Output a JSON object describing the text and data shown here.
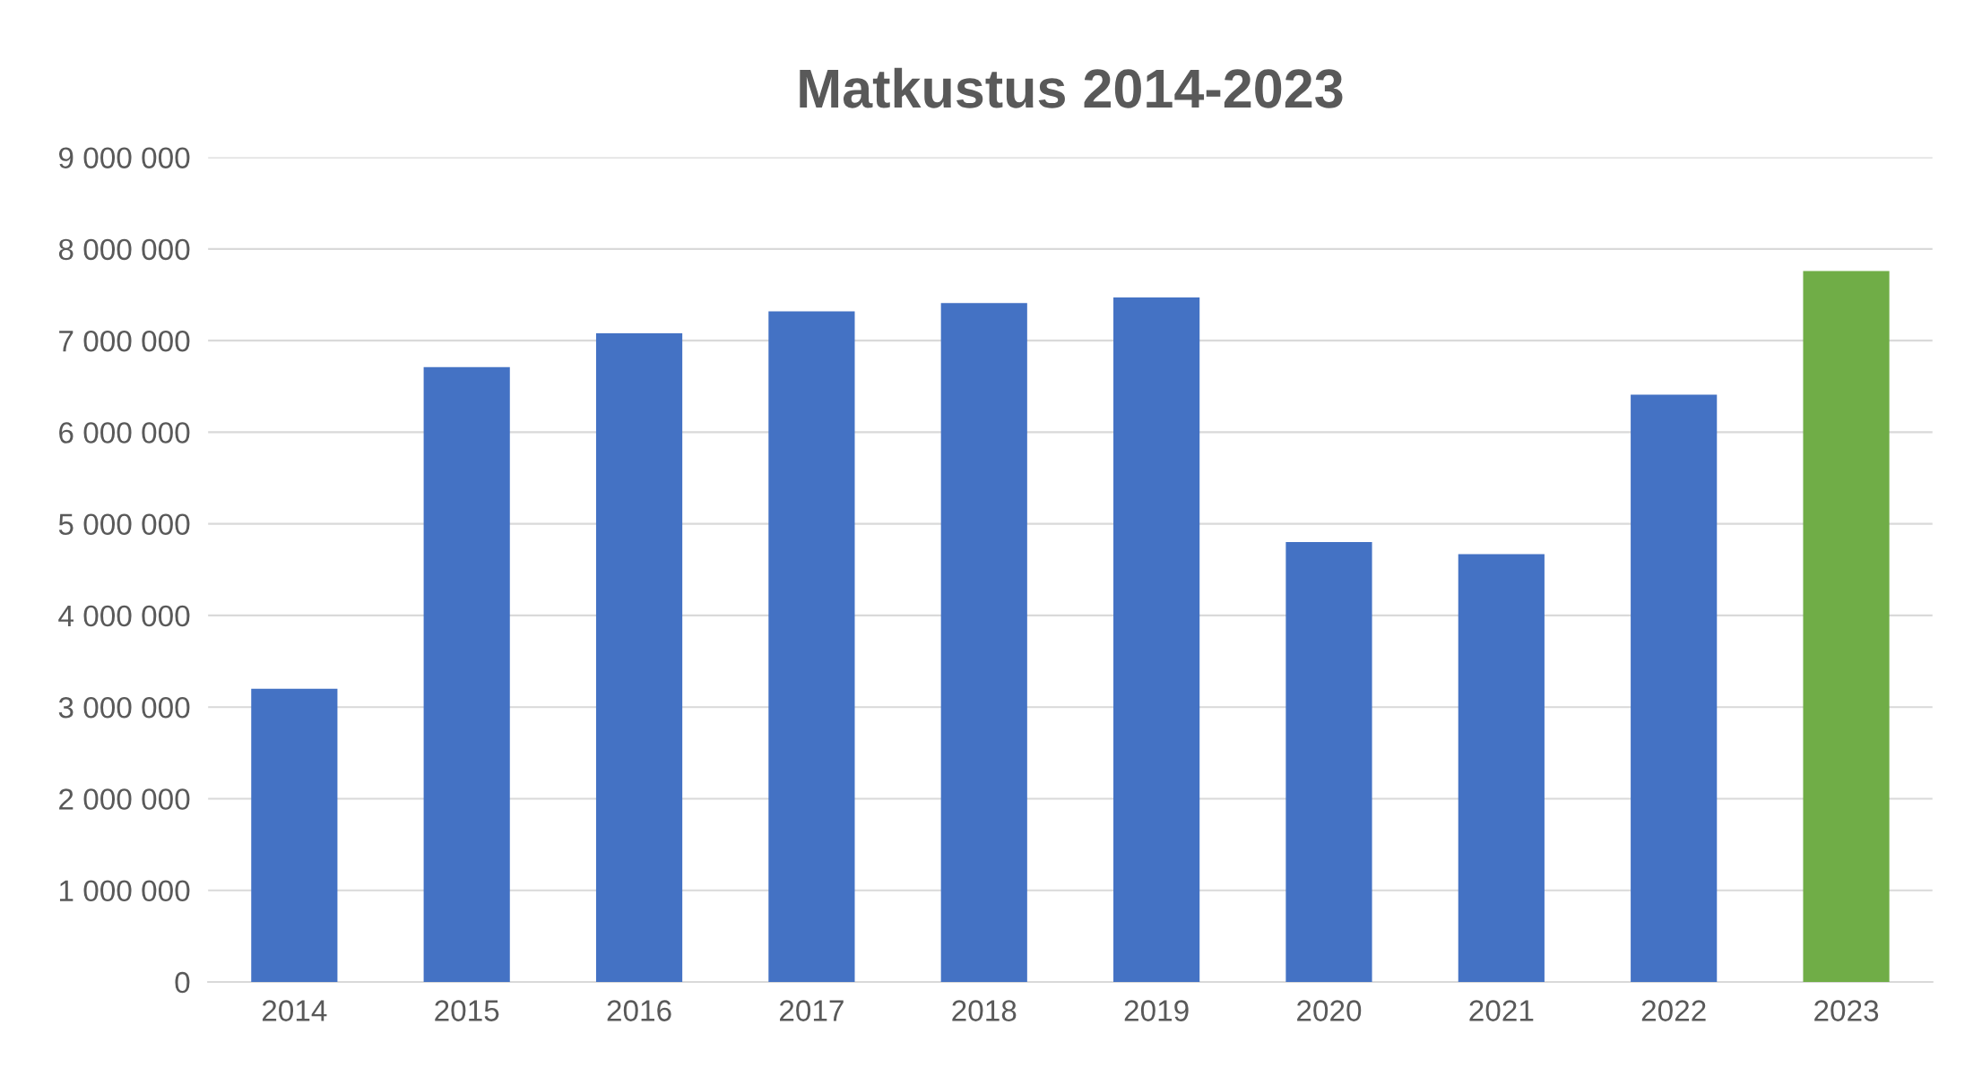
{
  "chart_data": {
    "type": "bar",
    "title": "Matkustus 2014-2023",
    "categories": [
      "2014",
      "2015",
      "2016",
      "2017",
      "2018",
      "2019",
      "2020",
      "2021",
      "2022",
      "2023"
    ],
    "values": [
      3200000,
      6710000,
      7080000,
      7320000,
      7410000,
      7470000,
      4800000,
      4670000,
      6410000,
      7760000
    ],
    "colors": [
      "#4472c4",
      "#4472c4",
      "#4472c4",
      "#4472c4",
      "#4472c4",
      "#4472c4",
      "#4472c4",
      "#4472c4",
      "#4472c4",
      "#70ad47"
    ],
    "ylim": [
      0,
      9000000
    ],
    "yticks": [
      {
        "value": 0,
        "label": "0"
      },
      {
        "value": 1000000,
        "label": "1 000 000"
      },
      {
        "value": 2000000,
        "label": "2 000 000"
      },
      {
        "value": 3000000,
        "label": "3 000 000"
      },
      {
        "value": 4000000,
        "label": "4 000 000"
      },
      {
        "value": 5000000,
        "label": "5 000 000"
      },
      {
        "value": 6000000,
        "label": "6 000 000"
      },
      {
        "value": 7000000,
        "label": "7 000 000"
      },
      {
        "value": 8000000,
        "label": "8 000 000"
      },
      {
        "value": 9000000,
        "label": "9 000 000"
      }
    ],
    "grid": "y",
    "legend": false
  }
}
